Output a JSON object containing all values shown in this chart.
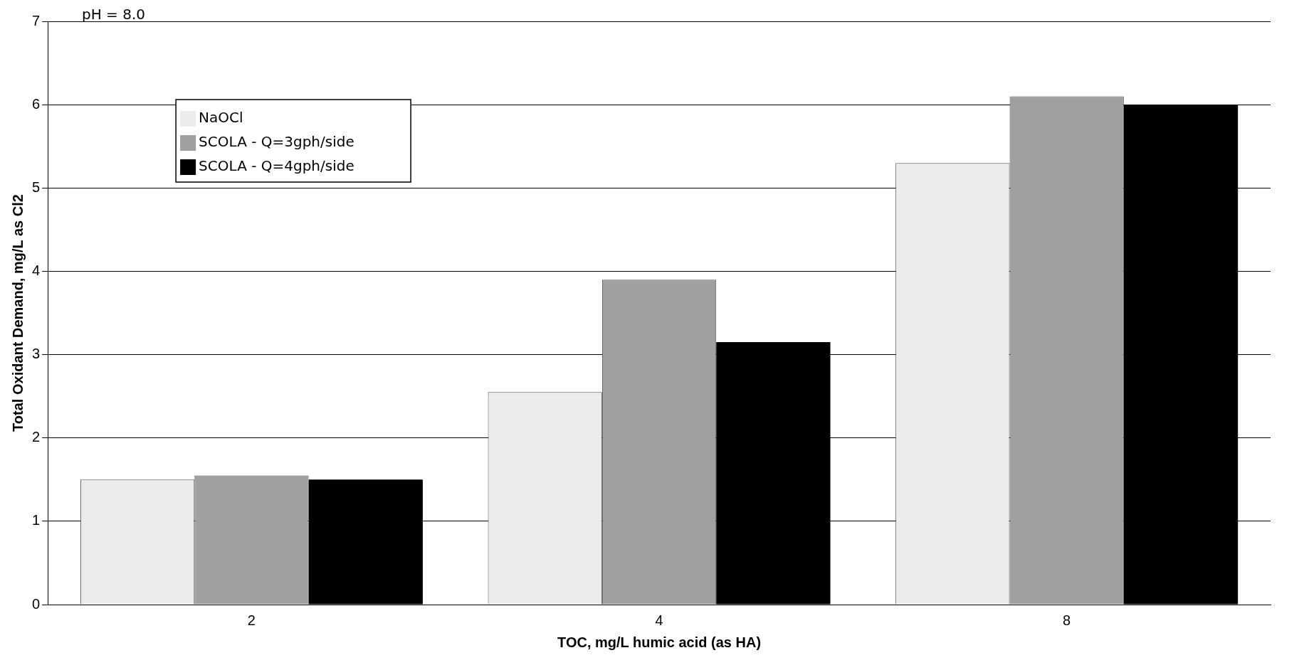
{
  "chart_data": {
    "type": "bar",
    "xlabel": "TOC, mg/L humic acid (as HA)",
    "ylabel": "Total Oxidant Demand, mg/L as Cl2",
    "categories": [
      "2",
      "4",
      "8"
    ],
    "series": [
      {
        "name": "NaOCl",
        "color": "#ececec",
        "values": [
          1.5,
          2.55,
          5.3
        ]
      },
      {
        "name": "SCOLA - Q=3gph/side",
        "color": "#a0a0a0",
        "values": [
          1.55,
          3.9,
          6.1
        ]
      },
      {
        "name": "SCOLA - Q=4gph/side",
        "color": "#000000",
        "values": [
          1.5,
          3.15,
          6.0
        ]
      }
    ],
    "ylim": [
      0,
      7
    ],
    "yticks": [
      0,
      1,
      2,
      3,
      4,
      5,
      6,
      7
    ],
    "grid": "y",
    "legend": "top left",
    "annotations": [
      "pH = 8.0"
    ]
  }
}
